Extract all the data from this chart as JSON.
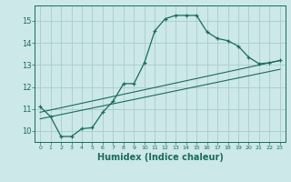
{
  "title": "",
  "xlabel": "Humidex (Indice chaleur)",
  "bg_color": "#cce8e8",
  "grid_color": "#aacccc",
  "line_color": "#1a6b5a",
  "xlim": [
    -0.5,
    23.5
  ],
  "ylim": [
    9.5,
    15.7
  ],
  "xticks": [
    0,
    1,
    2,
    3,
    4,
    5,
    6,
    7,
    8,
    9,
    10,
    11,
    12,
    13,
    14,
    15,
    16,
    17,
    18,
    19,
    20,
    21,
    22,
    23
  ],
  "yticks": [
    10,
    11,
    12,
    13,
    14,
    15
  ],
  "main_x": [
    0,
    1,
    2,
    3,
    4,
    5,
    6,
    7,
    8,
    9,
    10,
    11,
    12,
    13,
    14,
    15,
    16,
    17,
    18,
    19,
    20,
    21,
    22,
    23
  ],
  "main_y": [
    11.1,
    10.65,
    9.75,
    9.75,
    10.1,
    10.15,
    10.85,
    11.35,
    12.15,
    12.15,
    13.1,
    14.55,
    15.1,
    15.25,
    15.25,
    15.25,
    14.5,
    14.2,
    14.1,
    13.85,
    13.35,
    13.05,
    13.1,
    13.2
  ],
  "line1_x": [
    0,
    23
  ],
  "line1_y": [
    10.85,
    13.2
  ],
  "line2_x": [
    0,
    23
  ],
  "line2_y": [
    10.55,
    12.8
  ]
}
